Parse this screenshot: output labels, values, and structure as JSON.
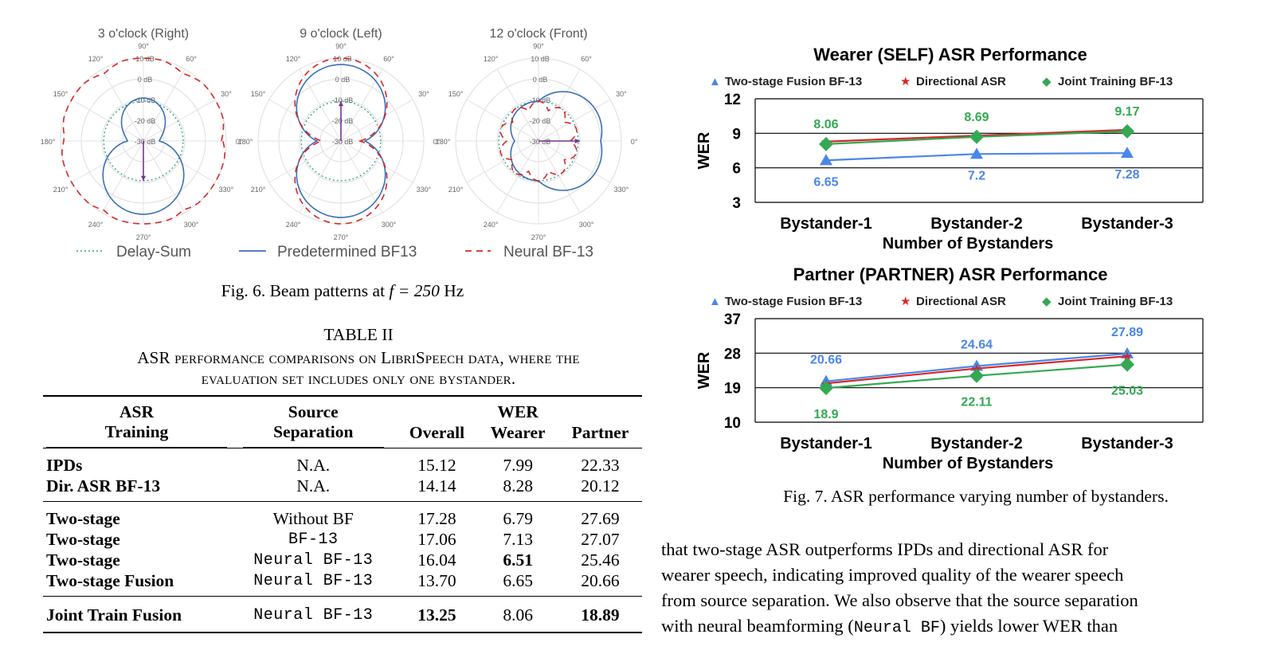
{
  "fig6": {
    "panels": [
      {
        "title": "3 o'clock (Right)"
      },
      {
        "title": "9 o'clock (Left)"
      },
      {
        "title": "12 o'clock (Front)"
      }
    ],
    "angle_labels": [
      "0°",
      "30°",
      "60°",
      "90°",
      "120°",
      "150°",
      "180°",
      "210°",
      "240°",
      "270°",
      "300°",
      "330°"
    ],
    "ring_labels": [
      "10 dB",
      "0 dB",
      "-10 dB",
      "-20 dB",
      "-30 dB"
    ],
    "legend": [
      "Delay-Sum",
      "Predetermined BF13",
      "Neural BF-13"
    ],
    "caption_prefix": "Fig. 6.  Beam patterns at ",
    "caption_math": "f = 250",
    "caption_suffix": " Hz",
    "colors": {
      "delay_sum": "#2a9d8f",
      "predetermined": "#3b6fb6",
      "neural": "#d62728",
      "arrow": "#7b3294"
    }
  },
  "table": {
    "label": "TABLE II",
    "caption_line1": "ASR performance comparisons on LibriSpeech data, where the",
    "caption_line2": "evaluation set includes only one bystander.",
    "headers": {
      "asr_line1": "ASR",
      "asr_line2": "Training",
      "src_line1": "Source",
      "src_line2": "Separation",
      "wer": "WER",
      "overall": "Overall",
      "wearer": "Wearer",
      "partner": "Partner"
    },
    "group1": [
      {
        "training": "IPDs",
        "separation": "N.A.",
        "overall": "15.12",
        "wearer": "7.99",
        "partner": "22.33"
      },
      {
        "training": "Dir. ASR BF-13",
        "separation": "N.A.",
        "overall": "14.14",
        "wearer": "8.28",
        "partner": "20.12"
      }
    ],
    "group2": [
      {
        "training": "Two-stage",
        "separation": "Without BF",
        "overall": "17.28",
        "wearer": "6.79",
        "partner": "27.69"
      },
      {
        "training": "Two-stage",
        "separation": "BF-13",
        "overall": "17.06",
        "wearer": "7.13",
        "partner": "27.07"
      },
      {
        "training": "Two-stage",
        "separation": "Neural BF-13",
        "overall": "16.04",
        "wearer": "6.51",
        "partner": "25.46"
      },
      {
        "training": "Two-stage Fusion",
        "separation": "Neural BF-13",
        "overall": "13.70",
        "wearer": "6.65",
        "partner": "20.66"
      }
    ],
    "group3": [
      {
        "training": "Joint Train Fusion",
        "separation": "Neural BF-13",
        "overall": "13.25",
        "wearer": "8.06",
        "partner": "18.89"
      }
    ]
  },
  "chart_data": [
    {
      "type": "line",
      "title": "Wearer (SELF) ASR Performance",
      "categories": [
        "Bystander-1",
        "Bystander-2",
        "Bystander-3"
      ],
      "xlabel": "Number of Bystanders",
      "ylabel": "WER",
      "ylim": [
        3,
        12
      ],
      "yticks": [
        "3",
        "6",
        "9",
        "12"
      ],
      "series": [
        {
          "name": "Two-stage Fusion BF-13",
          "values": [
            6.65,
            7.2,
            7.28
          ],
          "labels": [
            "6.65",
            "7.2",
            "7.28"
          ],
          "color": "#4a86e8",
          "marker": "▲"
        },
        {
          "name": "Directional ASR",
          "values": [
            8.28,
            8.8,
            9.3
          ],
          "labels": null,
          "color": "#d62728",
          "marker": "★"
        },
        {
          "name": "Joint Training BF-13",
          "values": [
            8.06,
            8.69,
            9.17
          ],
          "labels": [
            "8.06",
            "8.69",
            "9.17"
          ],
          "color": "#34a853",
          "marker": "◆"
        }
      ]
    },
    {
      "type": "line",
      "title": "Partner (PARTNER) ASR Performance",
      "categories": [
        "Bystander-1",
        "Bystander-2",
        "Bystander-3"
      ],
      "xlabel": "Number of Bystanders",
      "ylabel": "WER",
      "ylim": [
        10,
        37
      ],
      "yticks": [
        "10",
        "19",
        "28",
        "37"
      ],
      "series": [
        {
          "name": "Two-stage Fusion BF-13",
          "values": [
            20.66,
            24.64,
            27.89
          ],
          "labels": [
            "20.66",
            "24.64",
            "27.89"
          ],
          "color": "#4a86e8",
          "marker": "▲"
        },
        {
          "name": "Directional ASR",
          "values": [
            20.12,
            24.0,
            27.2
          ],
          "labels": null,
          "color": "#d62728",
          "marker": "★"
        },
        {
          "name": "Joint Training BF-13",
          "values": [
            18.9,
            22.11,
            25.03
          ],
          "labels": [
            "18.9",
            "22.11",
            "25.03"
          ],
          "color": "#34a853",
          "marker": "◆"
        }
      ]
    }
  ],
  "fig7_caption": "Fig. 7.  ASR performance varying number of bystanders.",
  "body": {
    "line1": "that two-stage ASR outperforms IPDs and directional ASR for",
    "line2": "wearer speech, indicating improved quality of the wearer speech",
    "line3": "from source separation. We also observe that the source separation",
    "line4_a": "with neural beamforming (",
    "line4_mono": "Neural BF",
    "line4_b": ") yields lower WER than"
  }
}
